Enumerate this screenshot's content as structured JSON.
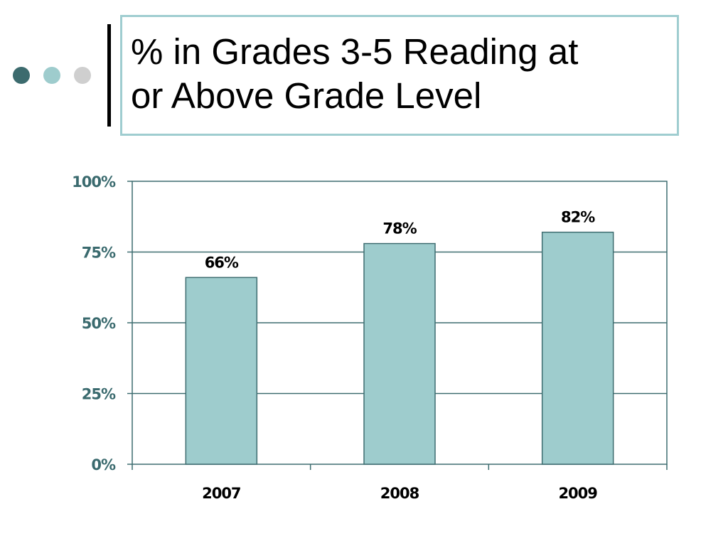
{
  "slide": {
    "title": "% in Grades 3-5 Reading at\nor Above Grade Level"
  },
  "colors": {
    "bar_fill": "#9ecccd",
    "bar_stroke": "#3e6d70",
    "gridline": "#3e6d70",
    "frame": "#3e6d70",
    "title_border": "#9fcdd0",
    "dot_dark": "#3c6b6e",
    "dot_mid": "#9ecccd",
    "dot_light": "#cfcfcf"
  },
  "chart_data": {
    "type": "bar",
    "title": "",
    "xlabel": "",
    "ylabel": "",
    "categories": [
      "2007",
      "2008",
      "2009"
    ],
    "values": [
      66,
      78,
      82
    ],
    "data_labels": [
      "66%",
      "78%",
      "82%"
    ],
    "ylim": [
      0,
      100
    ],
    "yticks": [
      0,
      25,
      50,
      75,
      100
    ],
    "ytick_labels": [
      "0%",
      "25%",
      "50%",
      "75%",
      "100%"
    ],
    "grid": true,
    "legend": "none"
  }
}
